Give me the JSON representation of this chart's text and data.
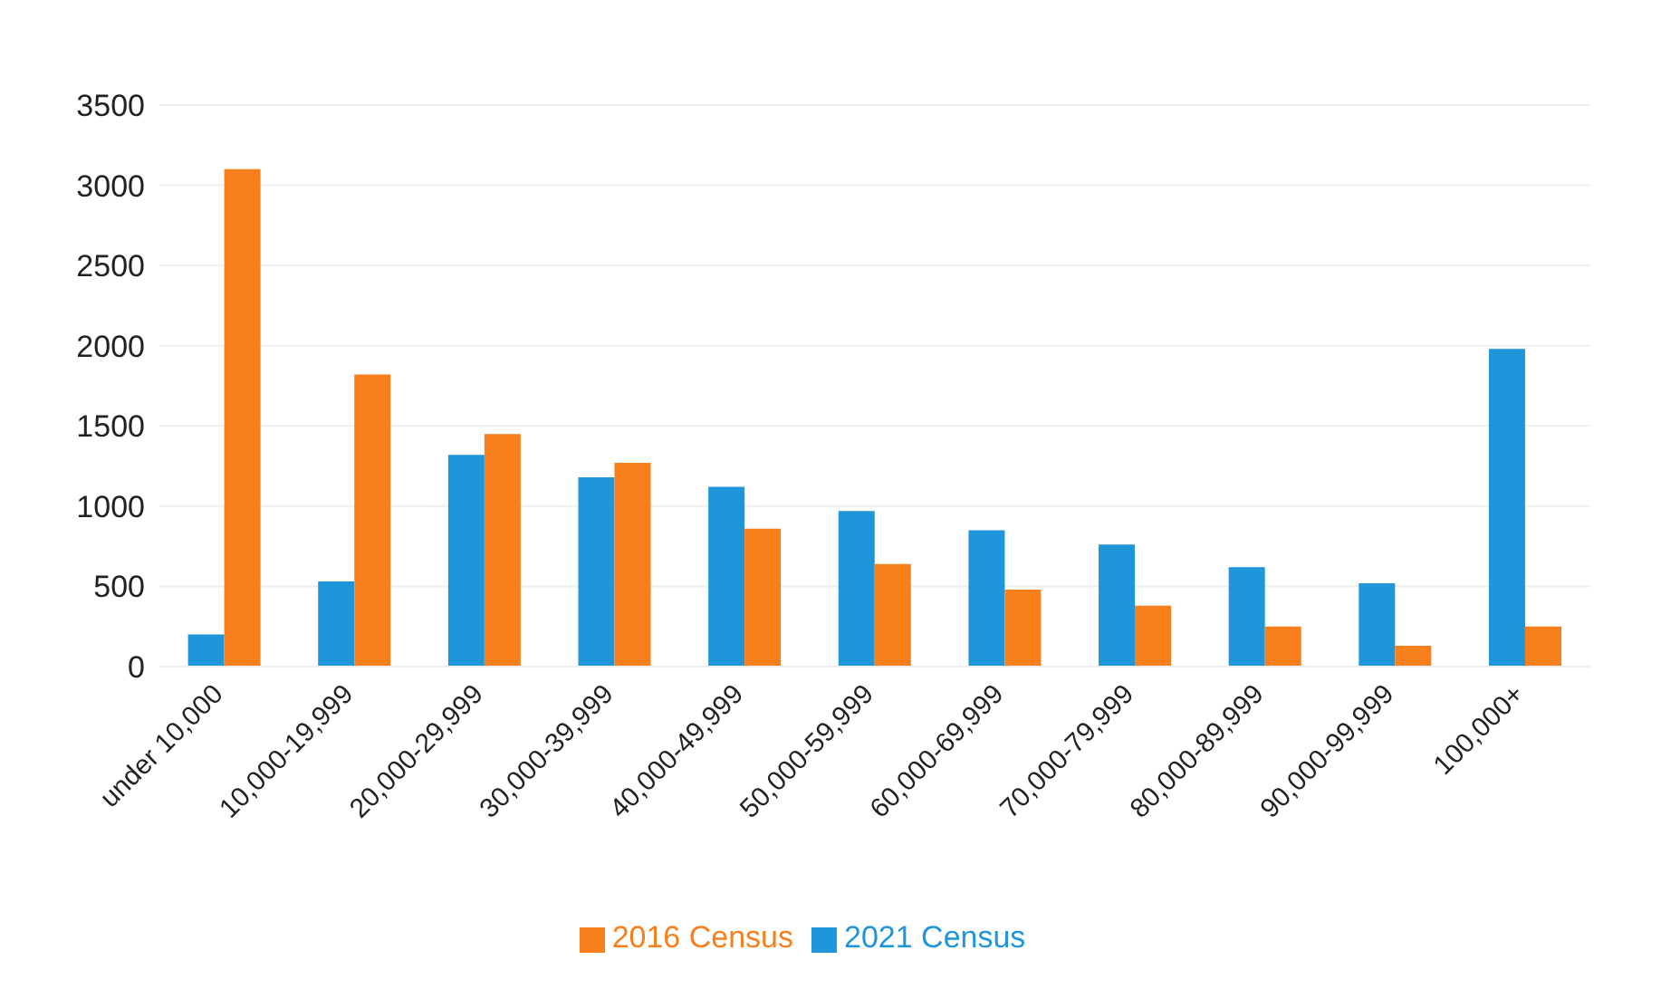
{
  "chart_data": {
    "type": "bar",
    "categories": [
      "under 10,000",
      "10,000-19,999",
      "20,000-29,999",
      "30,000-39,999",
      "40,000-49,999",
      "50,000-59,999",
      "60,000-69,999",
      "70,000-79,999",
      "80,000-89,999",
      "90,000-99,999",
      "100,000+"
    ],
    "series": [
      {
        "name": "2021 Census",
        "color": "#1f96d9",
        "values": [
          200,
          530,
          1320,
          1180,
          1120,
          970,
          850,
          760,
          620,
          520,
          1980
        ]
      },
      {
        "name": "2016 Census",
        "color": "#f77f1c",
        "values": [
          3100,
          1820,
          1450,
          1270,
          860,
          640,
          480,
          380,
          250,
          130,
          250
        ]
      }
    ],
    "ylim": [
      0,
      3500
    ],
    "yticks": [
      0,
      500,
      1000,
      1500,
      2000,
      2500,
      3000,
      3500
    ],
    "grid": "y",
    "legend": "bottom"
  }
}
